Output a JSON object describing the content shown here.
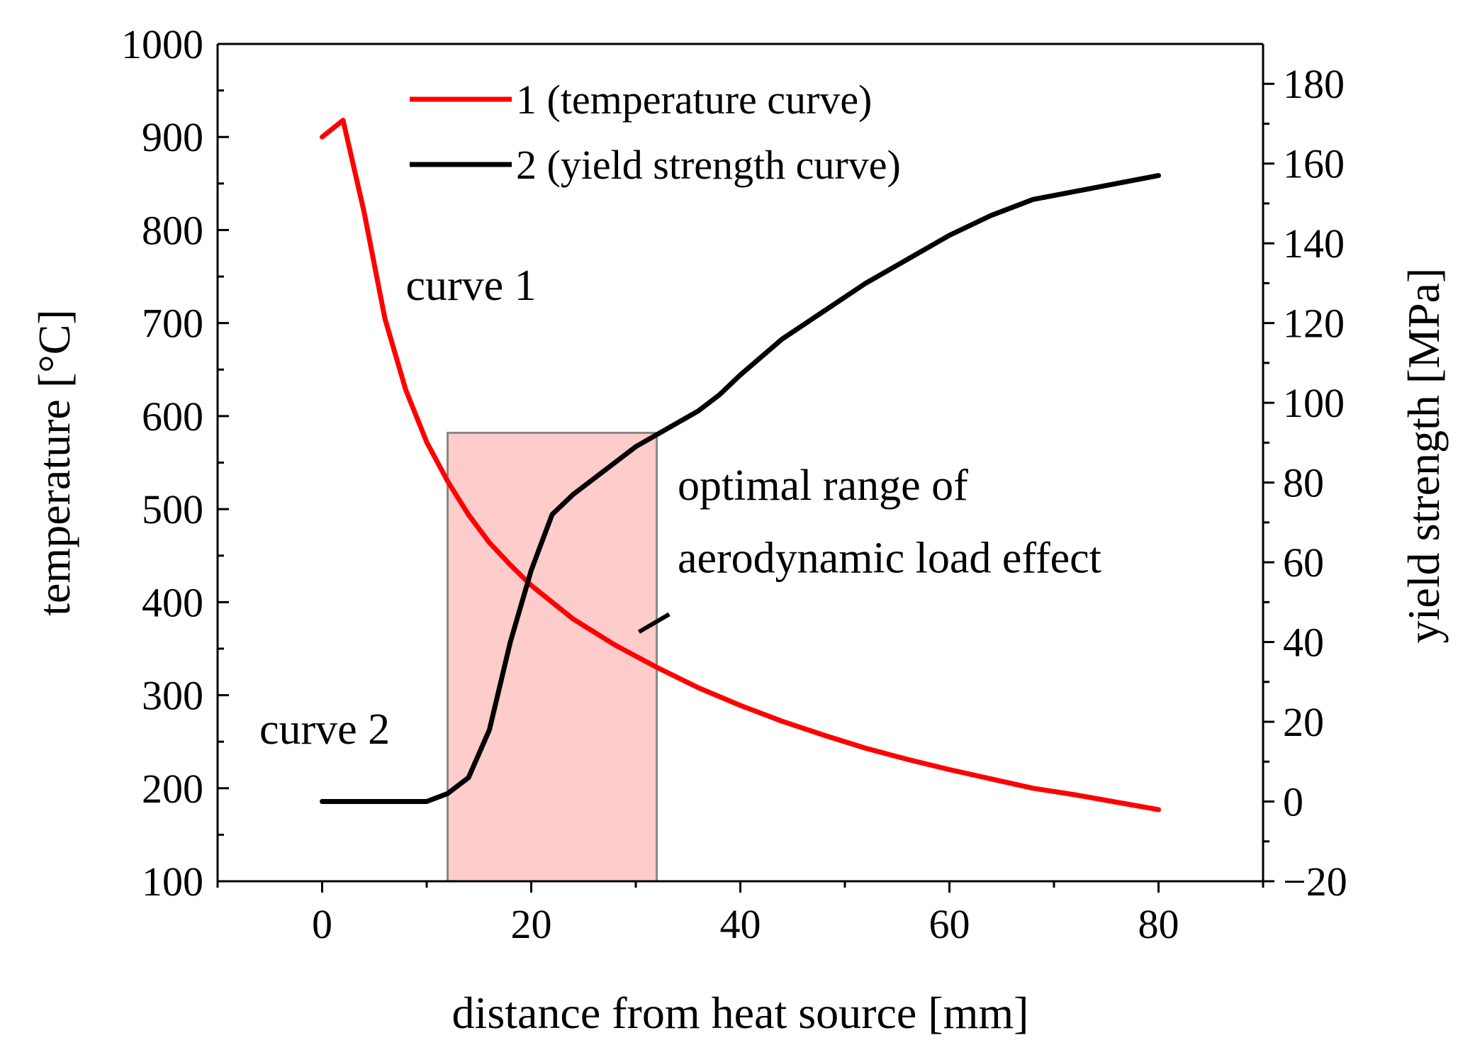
{
  "chart_data": {
    "type": "line",
    "title": "",
    "xlabel": "distance from heat source [mm]",
    "ylabel": "temperature [°C]",
    "y2label": "yield strength [MPa]",
    "xlim": [
      -10,
      90
    ],
    "ylim": [
      100,
      1000
    ],
    "y2lim": [
      -20,
      190
    ],
    "x_ticks": [
      0,
      20,
      40,
      60,
      80
    ],
    "y_ticks": [
      100,
      200,
      300,
      400,
      500,
      600,
      700,
      800,
      900,
      1000
    ],
    "y2_ticks": [
      -20,
      0,
      20,
      40,
      60,
      80,
      100,
      120,
      140,
      160,
      180
    ],
    "x_tick_labels": [
      "0",
      "20",
      "40",
      "60",
      "80"
    ],
    "y_tick_labels": [
      "100",
      "200",
      "300",
      "400",
      "500",
      "600",
      "700",
      "800",
      "900",
      "1000"
    ],
    "y2_tick_labels": [
      "−20",
      "0",
      "20",
      "40",
      "60",
      "80",
      "100",
      "120",
      "140",
      "160",
      "180"
    ],
    "legend_position": "top-center",
    "series": [
      {
        "name": "1 (temperature curve)",
        "axis": "left",
        "color": "#ff0000",
        "x": [
          0,
          2,
          4,
          6,
          8,
          10,
          12,
          14,
          16,
          18,
          20,
          24,
          28,
          32,
          36,
          40,
          44,
          48,
          52,
          56,
          60,
          64,
          68,
          72,
          76,
          80
        ],
        "y": [
          900,
          918,
          820,
          705,
          628,
          572,
          530,
          494,
          464,
          440,
          418,
          382,
          354,
          330,
          308,
          289,
          272,
          257,
          243,
          231,
          220,
          210,
          200,
          193,
          185,
          177
        ]
      },
      {
        "name": "2 (yield strength curve)",
        "axis": "right",
        "color": "#000000",
        "x": [
          0,
          10,
          12,
          14,
          16,
          18,
          20,
          22,
          24,
          26,
          28,
          30,
          32,
          36,
          38,
          40,
          44,
          48,
          52,
          56,
          60,
          64,
          68,
          72,
          76,
          80
        ],
        "y": [
          0,
          0,
          2,
          6,
          18,
          40,
          58,
          72,
          77,
          81,
          85,
          89,
          92,
          98,
          102,
          107,
          116,
          123,
          130,
          136,
          142,
          147,
          151,
          153,
          155,
          157
        ]
      }
    ],
    "highlight": {
      "label": "optimal range of aerodynamic load effect",
      "x_range": [
        12,
        32
      ],
      "y_range": [
        100,
        582
      ],
      "color": "#ff0000"
    },
    "annotations": [
      {
        "text": "curve 1",
        "x": 8,
        "y": 725,
        "axis": "left"
      },
      {
        "text": "curve 2",
        "x": -6,
        "y": 248,
        "axis": "left"
      },
      {
        "text": "optimal range of",
        "x": 34,
        "y": 510,
        "axis": "left"
      },
      {
        "text": "aerodynamic load effect",
        "x": 34,
        "y": 432,
        "axis": "left"
      }
    ]
  }
}
